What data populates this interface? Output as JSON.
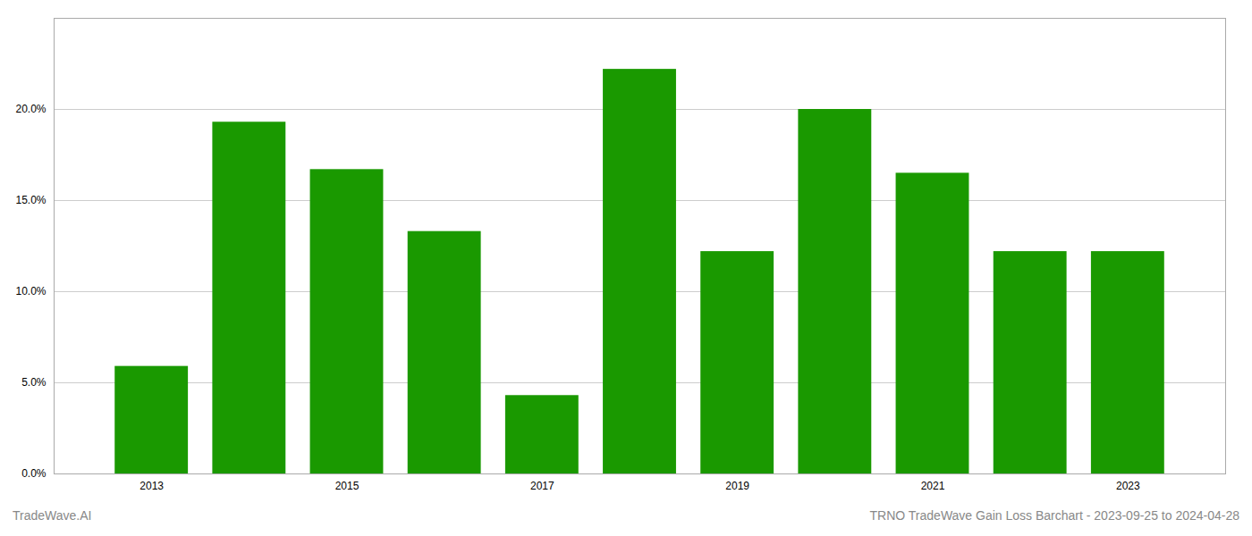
{
  "chart_data": {
    "type": "bar",
    "x": [
      2013,
      2014,
      2015,
      2016,
      2017,
      2018,
      2019,
      2020,
      2021,
      2022,
      2023
    ],
    "values": [
      0.059,
      0.193,
      0.167,
      0.133,
      0.043,
      0.222,
      0.122,
      0.2,
      0.165,
      0.122,
      0.122
    ],
    "color": "#1a9900",
    "xlim": [
      2012,
      2024
    ],
    "xticks": [
      2013,
      2015,
      2017,
      2019,
      2021,
      2023
    ],
    "ylim": [
      0,
      0.25
    ],
    "yticks": [
      {
        "value": 0.0,
        "label": "0.0%"
      },
      {
        "value": 0.05,
        "label": "5.0%"
      },
      {
        "value": 0.1,
        "label": "10.0%"
      },
      {
        "value": 0.15,
        "label": "15.0%"
      },
      {
        "value": 0.2,
        "label": "20.0%"
      }
    ],
    "grid": true,
    "annotations": [
      "TradeWave.AI",
      "TRNO TradeWave Gain Loss Barchart - 2023-09-25 to 2024-04-28"
    ]
  }
}
